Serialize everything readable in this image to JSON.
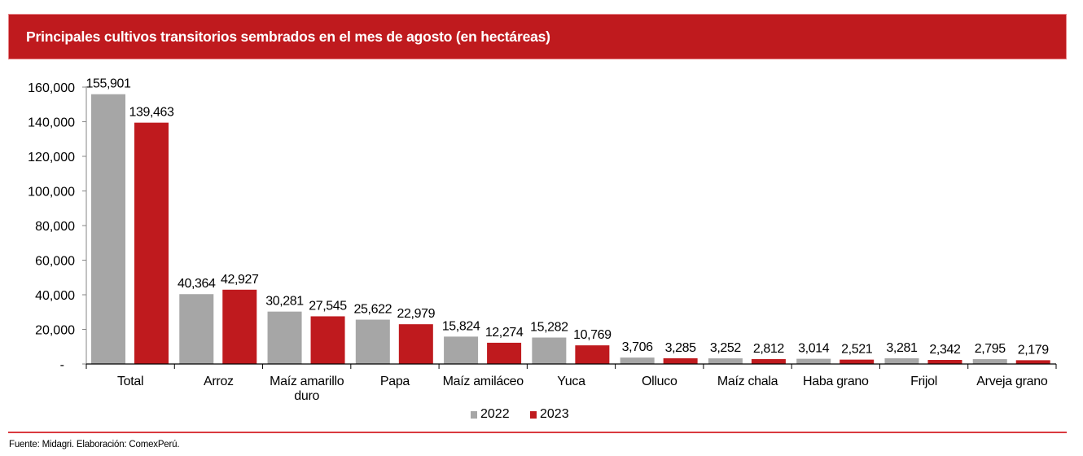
{
  "header": {
    "title": "Principales cultivos transitorios sembrados en el mes de agosto (en hectáreas)"
  },
  "colors": {
    "header_bg": "#bf1a1e",
    "series_2022": "#a6a6a6",
    "series_2023": "#bf1a1e",
    "rule": "#d93a3f"
  },
  "chart_data": {
    "type": "bar",
    "title": "Principales cultivos transitorios sembrados en el mes de agosto (en hectáreas)",
    "xlabel": "",
    "ylabel": "",
    "ylim": [
      0,
      160000
    ],
    "yticks": [
      0,
      20000,
      40000,
      60000,
      80000,
      100000,
      120000,
      140000,
      160000
    ],
    "ytick_labels": [
      "-",
      "20,000",
      "40,000",
      "60,000",
      "80,000",
      "100,000",
      "120,000",
      "140,000",
      "160,000"
    ],
    "grid": false,
    "legend_position": "bottom-center",
    "categories": [
      [
        "Total"
      ],
      [
        "Arroz"
      ],
      [
        "Maíz amarillo",
        "duro"
      ],
      [
        "Papa"
      ],
      [
        "Maíz amiláceo"
      ],
      [
        "Yuca"
      ],
      [
        "Olluco"
      ],
      [
        "Maíz chala"
      ],
      [
        "Haba grano"
      ],
      [
        "Frijol"
      ],
      [
        "Arveja grano"
      ]
    ],
    "series": [
      {
        "name": "2022",
        "color": "#a6a6a6",
        "values": [
          155901,
          40364,
          30281,
          25622,
          15824,
          15282,
          3706,
          3252,
          3014,
          3281,
          2795
        ],
        "labels": [
          "155,901",
          "40,364",
          "30,281",
          "25,622",
          "15,824",
          "15,282",
          "3,706",
          "3,252",
          "3,014",
          "3,281",
          "2,795"
        ]
      },
      {
        "name": "2023",
        "color": "#bf1a1e",
        "values": [
          139463,
          42927,
          27545,
          22979,
          12274,
          10769,
          3285,
          2812,
          2521,
          2342,
          2179
        ],
        "labels": [
          "139,463",
          "42,927",
          "27,545",
          "22,979",
          "12,274",
          "10,769",
          "3,285",
          "2,812",
          "2,521",
          "2,342",
          "2,179"
        ]
      }
    ]
  },
  "legend": {
    "items": [
      {
        "label": "2022",
        "color": "#a6a6a6"
      },
      {
        "label": "2023",
        "color": "#bf1a1e"
      }
    ]
  },
  "footnote": "Fuente: Midagri. Elaboración: ComexPerú."
}
